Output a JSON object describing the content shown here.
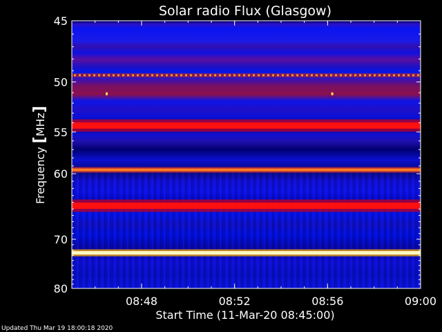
{
  "chart_data": {
    "type": "heatmap",
    "title": "Solar radio Flux (Glasgow)",
    "xlabel": "Start Time (11-Mar-20 08:45:00)",
    "ylabel_main": "Frequency ",
    "ylabel_unit_open": "[",
    "ylabel_unit": "MHz",
    "ylabel_unit_close": "]",
    "x_range_minutes": [
      0,
      15
    ],
    "x_ticks": [
      {
        "minute": 3,
        "label": "08:48"
      },
      {
        "minute": 7,
        "label": "08:52"
      },
      {
        "minute": 11,
        "label": "08:56"
      },
      {
        "minute": 15,
        "label": "09:00"
      }
    ],
    "y_scale": "reciprocal",
    "y_range_mhz": [
      45,
      80
    ],
    "y_ticks": [
      {
        "mhz": 45,
        "label": "45"
      },
      {
        "mhz": 50,
        "label": "50"
      },
      {
        "mhz": 55,
        "label": "55"
      },
      {
        "mhz": 60,
        "label": "60"
      },
      {
        "mhz": 70,
        "label": "70"
      },
      {
        "mhz": 80,
        "label": "80"
      }
    ],
    "colormap": [
      "#000064",
      "#0000ff",
      "#3c00c8",
      "#ff0000",
      "#ffa000",
      "#ffffc8"
    ],
    "intense_bands": [
      {
        "mhz": 49.4,
        "level": "orange-dashed"
      },
      {
        "mhz": 54.3,
        "level": "red"
      },
      {
        "mhz": 59.5,
        "level": "orange"
      },
      {
        "mhz": 64.5,
        "level": "red"
      },
      {
        "mhz": 72.5,
        "level": "white-yellow"
      }
    ]
  },
  "footer": {
    "updated": "Updated Thu Mar 19 18:00:18 2020"
  }
}
